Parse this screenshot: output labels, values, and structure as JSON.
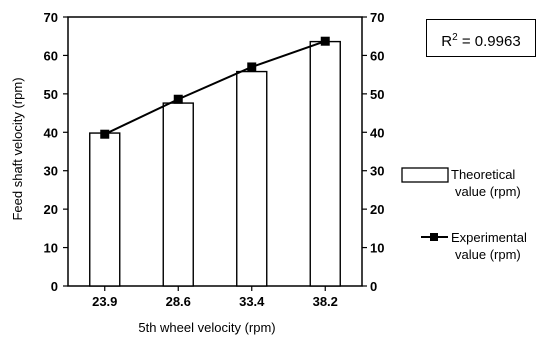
{
  "chart_data": {
    "type": "bar",
    "categories": [
      "23.9",
      "28.6",
      "33.4",
      "38.2"
    ],
    "series": [
      {
        "name": "Theoretical value (rpm)",
        "kind": "bar",
        "values": [
          39.8,
          47.6,
          55.8,
          63.6
        ]
      },
      {
        "name": "Experimental value (rpm)",
        "kind": "line",
        "marker": "square",
        "values": [
          39.5,
          48.6,
          57.0,
          63.7
        ]
      }
    ],
    "xlabel": "5th wheel velocity (rpm)",
    "ylabel": "Feed shaft velocity (rpm)",
    "ylim": [
      0,
      70
    ],
    "yticks": [
      "0",
      "10",
      "20",
      "30",
      "40",
      "50",
      "60",
      "70"
    ],
    "secondary_yticks": [
      "0",
      "10",
      "20",
      "30",
      "40",
      "50",
      "60",
      "70"
    ],
    "grid": false,
    "legend_position": "right",
    "legend": {
      "theoretical_line1": "Theoretical",
      "theoretical_line2": "value (rpm)",
      "experimental_line1": "Experimental",
      "experimental_line2": "value (rpm)"
    },
    "annotation": {
      "r2_prefix": "R",
      "r2_sup": "2",
      "r2_value": " = 0.9963"
    }
  }
}
